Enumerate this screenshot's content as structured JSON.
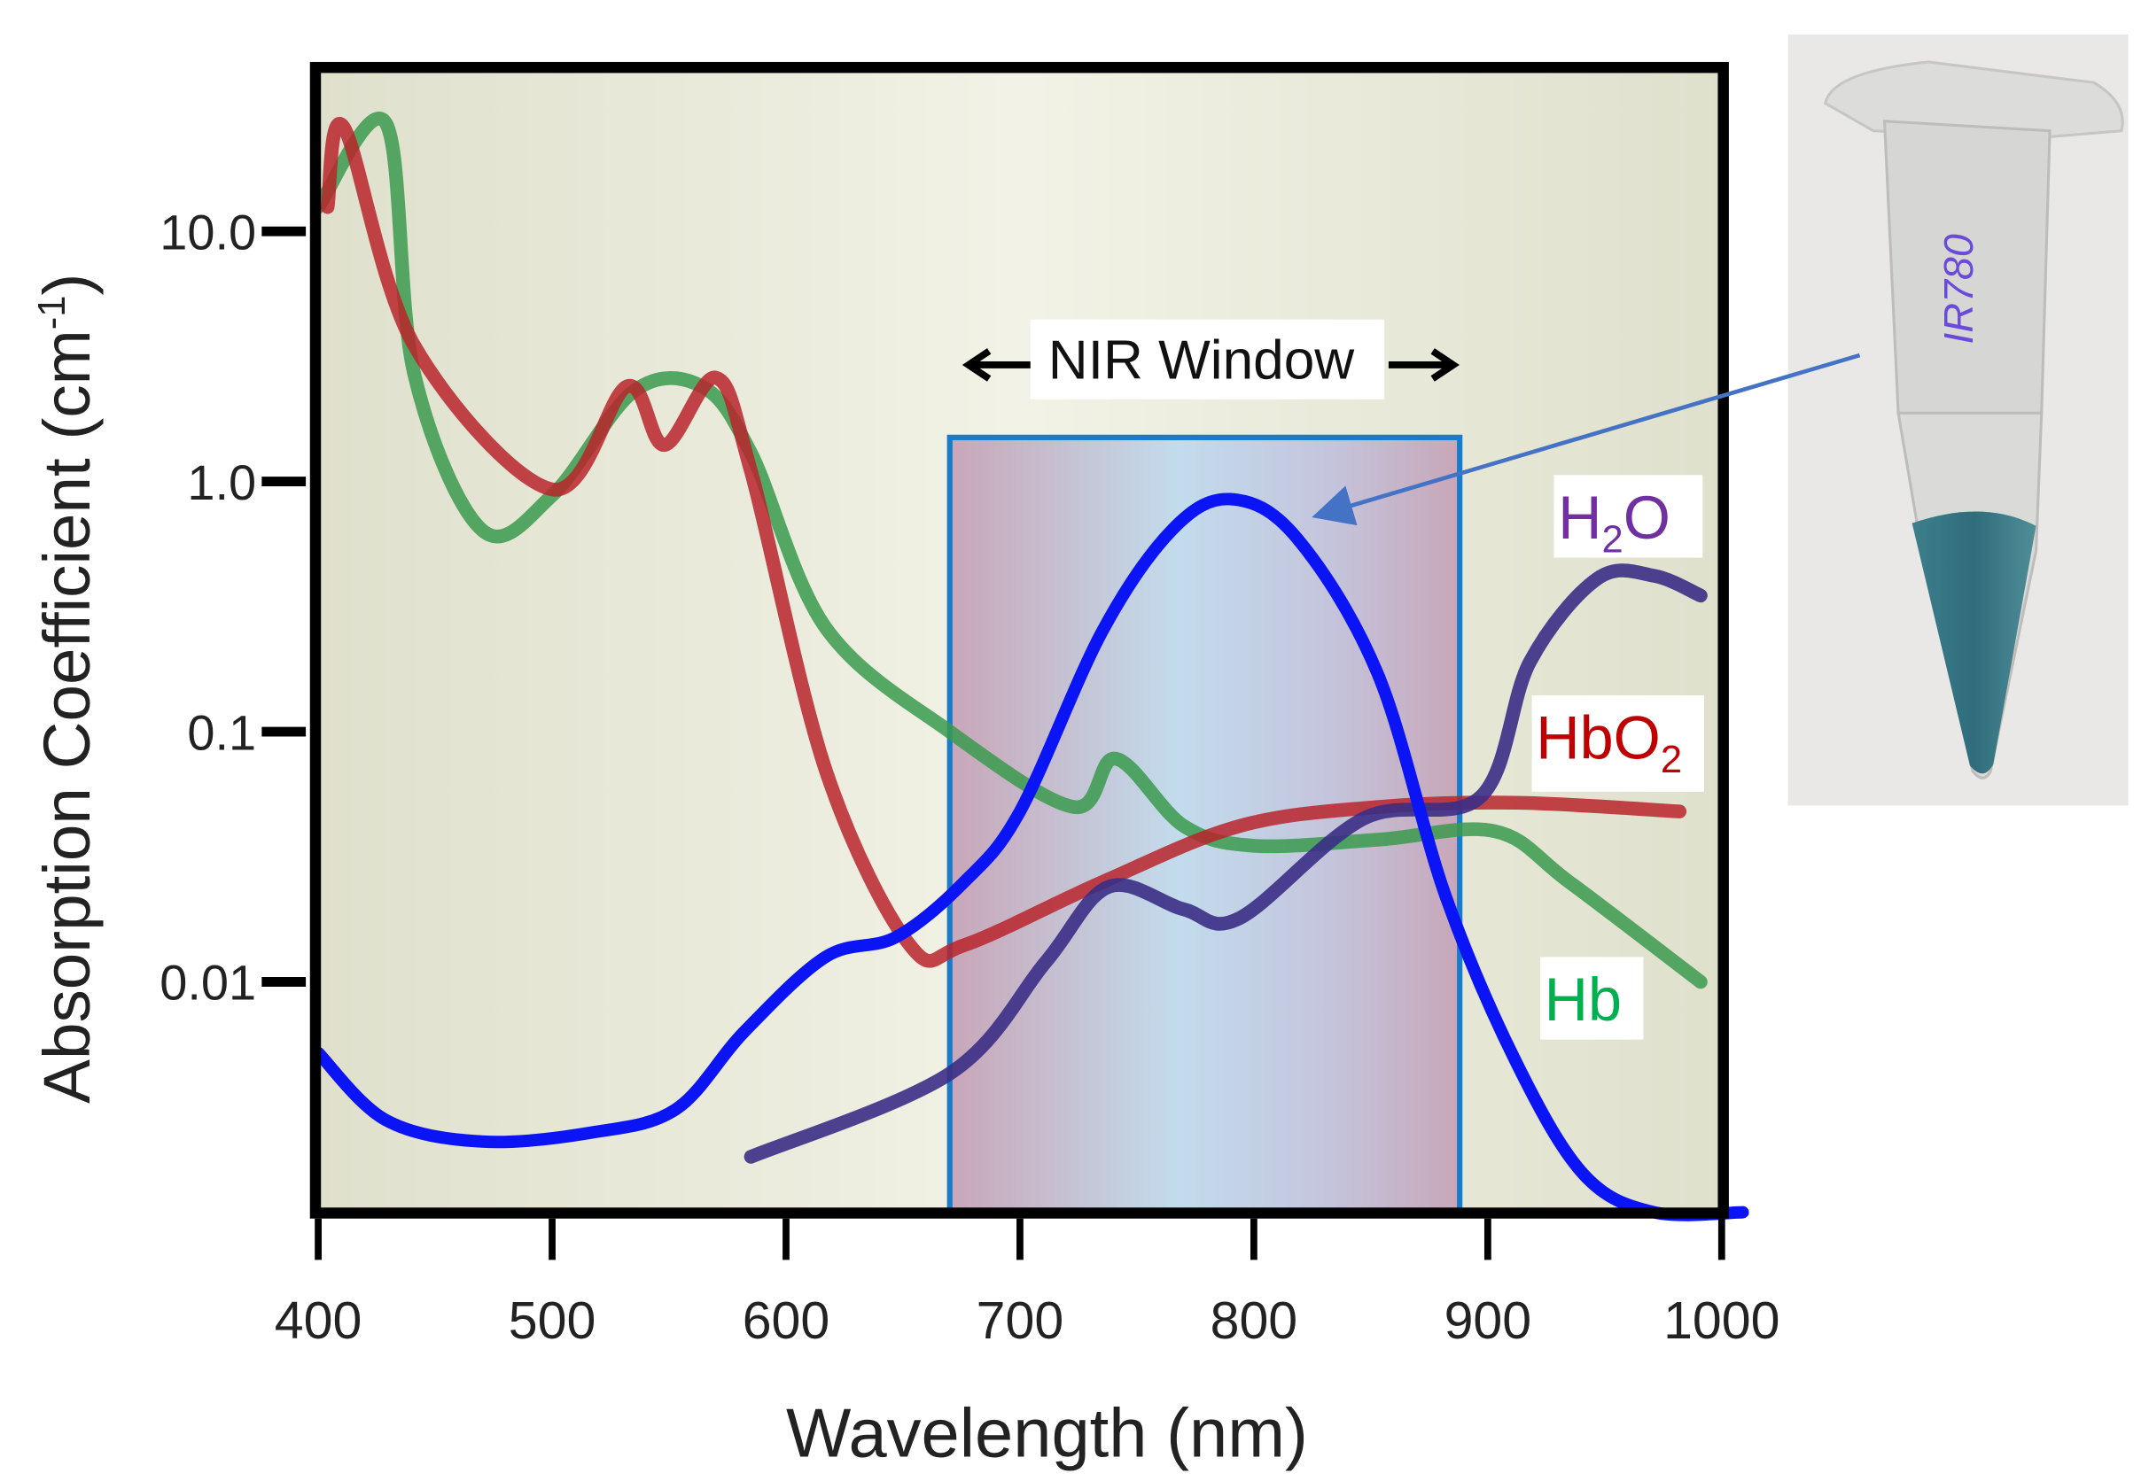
{
  "chart_data": {
    "type": "line",
    "title": "",
    "xlabel": "Wavelength (nm)",
    "ylabel": "Absorption Coefficient (cm",
    "ylabel_sup": "-1",
    "ylabel_close": ")",
    "xlim": [
      400,
      1000
    ],
    "ylim": [
      0.00113,
      35
    ],
    "yscale": "log",
    "grid": false,
    "xticks": [
      400,
      500,
      600,
      700,
      800,
      900,
      1000
    ],
    "xtick_labels": [
      "400",
      "500",
      "600",
      "700",
      "800",
      "900",
      "1000"
    ],
    "yticks": [
      10,
      1,
      0.1,
      0.01
    ],
    "ytick_labels": [
      "10.0",
      "1.0",
      "0.1",
      "0.01"
    ],
    "nir_window": {
      "label": "NIR Window",
      "range": [
        670,
        888
      ],
      "top": 1.5,
      "bottom": 0.00118
    },
    "series": [
      {
        "name": "Hb",
        "label_main": "Hb",
        "label_sub": "",
        "label_tail": "",
        "color": "#3a9a4e",
        "label_color": "#00b050",
        "opacity": 0.85,
        "x": [
          400,
          429,
          441,
          470,
          500,
          535,
          564,
          585,
          617,
          670,
          723,
          741,
          770,
          800,
          853,
          903,
          935,
          991
        ],
        "y": [
          12.5,
          27,
          2.7,
          0.64,
          0.88,
          2.3,
          2.4,
          1.3,
          0.26,
          0.1,
          0.05,
          0.078,
          0.042,
          0.035,
          0.037,
          0.04,
          0.025,
          0.01
        ]
      },
      {
        "name": "HbO2",
        "label_main": "HbO",
        "label_sub": "2",
        "label_tail": "",
        "color": "#b8242c",
        "label_color": "#c00000",
        "opacity": 0.85,
        "x": [
          404,
          411,
          441,
          500,
          532,
          548,
          570,
          585,
          617,
          653,
          676,
          735,
          794,
          853,
          912,
          982
        ],
        "y": [
          12.5,
          26,
          3.5,
          0.93,
          2.4,
          1.4,
          2.6,
          1.1,
          0.07,
          0.014,
          0.014,
          0.025,
          0.042,
          0.05,
          0.052,
          0.048
        ]
      },
      {
        "name": "H2O",
        "label_main": "H",
        "label_sub": "2",
        "label_tail": "O",
        "color": "#3b2e86",
        "label_color": "#7030a0",
        "opacity": 0.9,
        "x": [
          585,
          670,
          711,
          738,
          770,
          794,
          847,
          897,
          918,
          947,
          971,
          991
        ],
        "y": [
          0.002,
          0.0043,
          0.012,
          0.024,
          0.0195,
          0.018,
          0.045,
          0.055,
          0.19,
          0.41,
          0.42,
          0.35
        ]
      },
      {
        "name": "IR780",
        "label_main": "",
        "label_sub": "",
        "label_tail": "",
        "color": "#0a14f5",
        "label_color": "#0a14f5",
        "opacity": 1,
        "x": [
          400,
          429,
          470,
          517,
          553,
          582,
          617,
          647,
          676,
          700,
          735,
          765,
          790,
          818,
          853,
          882,
          912,
          941,
          971,
          1009
        ],
        "y": [
          0.0052,
          0.0028,
          0.0023,
          0.0025,
          0.0031,
          0.0063,
          0.0126,
          0.0151,
          0.025,
          0.048,
          0.25,
          0.64,
          0.85,
          0.6,
          0.17,
          0.022,
          0.0048,
          0.0017,
          0.0012,
          0.0012
        ]
      }
    ]
  },
  "photo": {
    "description_label": "IR780",
    "arrow_color": "#4472c4"
  }
}
